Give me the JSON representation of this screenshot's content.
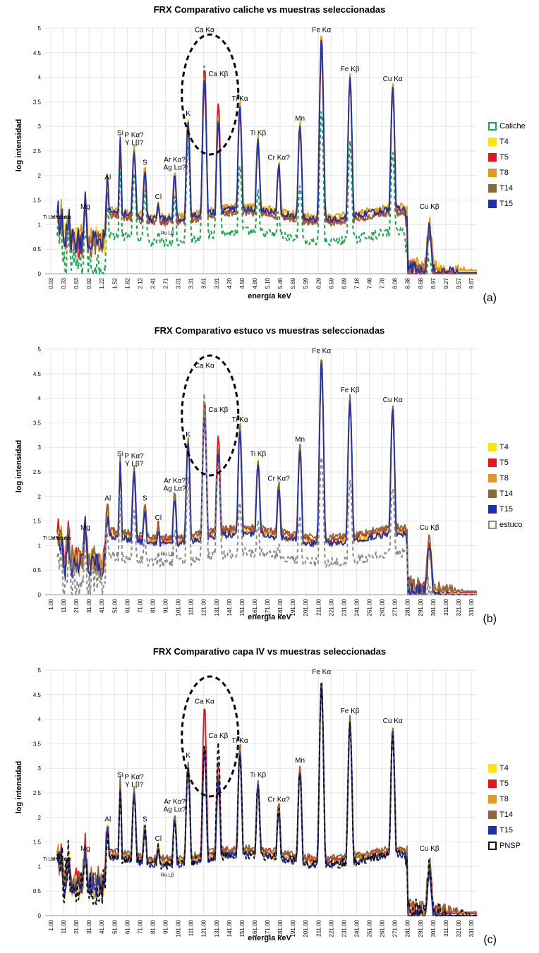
{
  "chart_data": [
    {
      "type": "line",
      "panel_letter": "(a)",
      "title": "FRX Comparativo caliche vs muestras seleccionadas",
      "xlabel": "energía keV",
      "ylabel": "log intensidad",
      "ylim": [
        0,
        5
      ],
      "yticks": [
        "0",
        "0.5",
        "1",
        "1.5",
        "2",
        "2.5",
        "3",
        "3.5",
        "4",
        "4.5",
        "5"
      ],
      "xticks": [
        "0.03",
        "0.33",
        "0.63",
        "0.92",
        "1.22",
        "1.52",
        "1.82",
        "2.12",
        "2.41",
        "2.71",
        "3.01",
        "3.31",
        "3.61",
        "3.91",
        "4.20",
        "4.50",
        "4.80",
        "5.10",
        "5.40",
        "5.69",
        "5.99",
        "6.29",
        "6.59",
        "6.89",
        "7.18",
        "7.48",
        "7.78",
        "8.08",
        "8.38",
        "8.68",
        "8.97",
        "9.27",
        "9.57",
        "9.87"
      ],
      "series": [
        {
          "name": "Caliche",
          "color": "#1aa64b",
          "dashed": true
        },
        {
          "name": "T4",
          "color": "#ffe600",
          "dashed": false
        },
        {
          "name": "T5",
          "color": "#e3161b",
          "dashed": false
        },
        {
          "name": "T8",
          "color": "#e09a1f",
          "dashed": false
        },
        {
          "name": "T14",
          "color": "#8c6a3a",
          "dashed": false
        },
        {
          "name": "T15",
          "color": "#1f2fb0",
          "dashed": false
        }
      ],
      "peaks": [
        {
          "x": 0.08,
          "label": "Ti Lα",
          "base": 1.0
        },
        {
          "x": 0.3,
          "label": "Mn Lα",
          "base": 1.0
        },
        {
          "x": 0.37,
          "label": "Ni Lα",
          "base": 1.0
        },
        {
          "x": 0.53,
          "label": "Na",
          "base": 1.0
        },
        {
          "x": 0.93,
          "label": "Mg",
          "base": 1.2
        },
        {
          "x": 1.45,
          "label": "Al",
          "base": 1.8
        },
        {
          "x": 1.74,
          "label": "Si",
          "base": 2.7
        },
        {
          "x": 2.06,
          "label": "P Kα? Y Lβ?",
          "base": 2.5
        },
        {
          "x": 2.31,
          "label": "S",
          "base": 2.1
        },
        {
          "x": 2.62,
          "label": "Cl",
          "base": 1.4
        },
        {
          "x": 2.83,
          "label": "Ru Lβ",
          "base": 0.8
        },
        {
          "x": 3.0,
          "label": "Ar Kα? Ag Lα?",
          "base": 2.0
        },
        {
          "x": 3.31,
          "label": "K",
          "base": 3.1
        },
        {
          "x": 3.69,
          "label": "Ca Kα",
          "base": 4.8
        },
        {
          "x": 4.01,
          "label": "Ca Kβ",
          "base": 3.9
        },
        {
          "x": 4.51,
          "label": "Ti Kα",
          "base": 3.4
        },
        {
          "x": 4.93,
          "label": "Ti Kβ",
          "base": 2.7
        },
        {
          "x": 5.41,
          "label": "Cr Kα?",
          "base": 2.2
        },
        {
          "x": 5.9,
          "label": "Mn",
          "base": 3.0
        },
        {
          "x": 6.4,
          "label": "Fe Kα",
          "base": 4.8
        },
        {
          "x": 7.06,
          "label": "Fe Kβ",
          "base": 4.0
        },
        {
          "x": 8.05,
          "label": "Cu Kα",
          "base": 3.8
        },
        {
          "x": 8.9,
          "label": "Cu Kβ",
          "base": 1.2
        }
      ]
    },
    {
      "type": "line",
      "panel_letter": "(b)",
      "title": "FRX Comparativo estuco vs muestras seleccionadas",
      "xlabel": "energía keV",
      "ylabel": "log intensidad",
      "ylim": [
        0,
        5
      ],
      "yticks": [
        "0",
        "0.5",
        "1",
        "1.5",
        "2",
        "2.5",
        "3",
        "3.5",
        "4",
        "4.5",
        "5"
      ],
      "xticks": [
        "1.00",
        "11.00",
        "21.00",
        "31.00",
        "41.00",
        "51.00",
        "61.00",
        "71.00",
        "81.00",
        "91.00",
        "101.00",
        "111.00",
        "121.00",
        "131.00",
        "141.00",
        "151.00",
        "161.00",
        "171.00",
        "181.00",
        "191.00",
        "201.00",
        "211.00",
        "221.00",
        "231.00",
        "241.00",
        "251.00",
        "261.00",
        "271.00",
        "281.00",
        "291.00",
        "301.00",
        "311.00",
        "321.00",
        "331.00"
      ],
      "series": [
        {
          "name": "T4",
          "color": "#ffe600",
          "dashed": false
        },
        {
          "name": "T5",
          "color": "#e3161b",
          "dashed": false
        },
        {
          "name": "T8",
          "color": "#e09a1f",
          "dashed": false
        },
        {
          "name": "T14",
          "color": "#8c6a3a",
          "dashed": false
        },
        {
          "name": "T15",
          "color": "#1f2fb0",
          "dashed": false
        },
        {
          "name": "estuco",
          "color": "#8a8a8a",
          "dashed": true
        }
      ],
      "peaks": [
        {
          "x": 0.08,
          "label": "Ti Lα",
          "base": 1.0
        },
        {
          "x": 0.3,
          "label": "Mn Lα",
          "base": 1.0
        },
        {
          "x": 0.37,
          "label": "Ni Lα",
          "base": 1.0
        },
        {
          "x": 0.53,
          "label": "Na",
          "base": 1.0
        },
        {
          "x": 0.93,
          "label": "Mg",
          "base": 1.2
        },
        {
          "x": 1.45,
          "label": "Al",
          "base": 1.8
        },
        {
          "x": 1.74,
          "label": "Si",
          "base": 2.7
        },
        {
          "x": 2.06,
          "label": "P Kα? Y Lβ?",
          "base": 2.5
        },
        {
          "x": 2.31,
          "label": "S",
          "base": 1.8
        },
        {
          "x": 2.62,
          "label": "Cl",
          "base": 1.4
        },
        {
          "x": 2.83,
          "label": "Ru Lβ",
          "base": 0.8
        },
        {
          "x": 3.0,
          "label": "Ar Kα? Ag Lα?",
          "base": 2.0
        },
        {
          "x": 3.31,
          "label": "K",
          "base": 3.1
        },
        {
          "x": 3.69,
          "label": "Ca Kα",
          "base": 4.5
        },
        {
          "x": 4.01,
          "label": "Ca Kβ",
          "base": 3.6
        },
        {
          "x": 4.51,
          "label": "Ti Kα",
          "base": 3.4
        },
        {
          "x": 4.93,
          "label": "Ti Kβ",
          "base": 2.7
        },
        {
          "x": 5.41,
          "label": "Cr Kα?",
          "base": 2.2
        },
        {
          "x": 5.9,
          "label": "Mn",
          "base": 3.0
        },
        {
          "x": 6.4,
          "label": "Fe Kα",
          "base": 4.8
        },
        {
          "x": 7.06,
          "label": "Fe Kβ",
          "base": 4.0
        },
        {
          "x": 8.05,
          "label": "Cu Kα",
          "base": 3.8
        },
        {
          "x": 8.9,
          "label": "Cu Kβ",
          "base": 1.2
        }
      ]
    },
    {
      "type": "line",
      "panel_letter": "(c)",
      "title": "FRX Comparativo capa IV vs muestras seleccionadas",
      "xlabel": "energía keV",
      "ylabel": "log intensidad",
      "ylim": [
        0,
        5
      ],
      "yticks": [
        "0",
        "0.5",
        "1",
        "1.5",
        "2",
        "2.5",
        "3",
        "3.5",
        "4",
        "4.5",
        "5"
      ],
      "xticks": [
        "1.00",
        "11.00",
        "21.00",
        "31.00",
        "41.00",
        "51.00",
        "61.00",
        "71.00",
        "81.00",
        "91.00",
        "101.00",
        "111.00",
        "121.00",
        "131.00",
        "141.00",
        "151.00",
        "161.00",
        "171.00",
        "181.00",
        "191.00",
        "201.00",
        "211.00",
        "221.00",
        "231.00",
        "241.00",
        "251.00",
        "261.00",
        "271.00",
        "281.00",
        "291.00",
        "301.00",
        "311.00",
        "321.00",
        "331.00"
      ],
      "series": [
        {
          "name": "T4",
          "color": "#ffe600",
          "dashed": false
        },
        {
          "name": "T5",
          "color": "#e3161b",
          "dashed": false
        },
        {
          "name": "T8",
          "color": "#e09a1f",
          "dashed": false
        },
        {
          "name": "T14",
          "color": "#8c6a3a",
          "dashed": false
        },
        {
          "name": "T15",
          "color": "#1f2fb0",
          "dashed": false
        },
        {
          "name": "PNSP",
          "color": "#111111",
          "dashed": true
        }
      ],
      "peaks": [
        {
          "x": 0.08,
          "label": "Ti Lα",
          "base": 1.0
        },
        {
          "x": 0.3,
          "label": "Mn Lα",
          "base": 1.0
        },
        {
          "x": 0.37,
          "label": "Ni Lα",
          "base": 1.0
        },
        {
          "x": 0.53,
          "label": "Na",
          "base": 1.0
        },
        {
          "x": 0.93,
          "label": "Mg",
          "base": 1.2
        },
        {
          "x": 1.45,
          "label": "Al",
          "base": 1.8
        },
        {
          "x": 1.74,
          "label": "Si",
          "base": 2.7
        },
        {
          "x": 2.06,
          "label": "P Kα? Y Lβ?",
          "base": 2.5
        },
        {
          "x": 2.31,
          "label": "S",
          "base": 1.8
        },
        {
          "x": 2.62,
          "label": "Cl",
          "base": 1.4
        },
        {
          "x": 2.83,
          "label": "Ru Lβ",
          "base": 0.8
        },
        {
          "x": 3.0,
          "label": "Ar Kα? Ag Lα?",
          "base": 2.0
        },
        {
          "x": 3.31,
          "label": "K",
          "base": 3.1
        },
        {
          "x": 3.69,
          "label": "Ca Kα",
          "base": 4.2
        },
        {
          "x": 4.01,
          "label": "Ca Kβ",
          "base": 3.5
        },
        {
          "x": 4.51,
          "label": "Ti Kα",
          "base": 3.4
        },
        {
          "x": 4.93,
          "label": "Ti Kβ",
          "base": 2.7
        },
        {
          "x": 5.41,
          "label": "Cr Kα?",
          "base": 2.2
        },
        {
          "x": 5.9,
          "label": "Mn",
          "base": 3.0
        },
        {
          "x": 6.4,
          "label": "Fe Kα",
          "base": 4.8
        },
        {
          "x": 7.06,
          "label": "Fe Kβ",
          "base": 4.0
        },
        {
          "x": 8.05,
          "label": "Cu Kα",
          "base": 3.8
        },
        {
          "x": 8.9,
          "label": "Cu Kβ",
          "base": 1.2
        }
      ]
    }
  ]
}
